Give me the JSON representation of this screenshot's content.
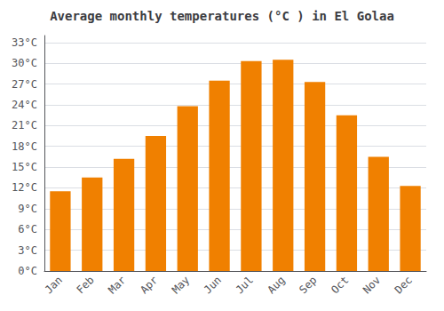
{
  "chart_data": {
    "type": "bar",
    "title": "Average monthly temperatures (°C ) in El Golaa",
    "categories": [
      "Jan",
      "Feb",
      "Mar",
      "Apr",
      "May",
      "Jun",
      "Jul",
      "Aug",
      "Sep",
      "Oct",
      "Nov",
      "Dec"
    ],
    "values": [
      11.5,
      13.5,
      16.2,
      19.5,
      23.8,
      27.5,
      30.3,
      30.5,
      27.3,
      22.5,
      16.5,
      12.3
    ],
    "color": "#F08000",
    "ylim": [
      0,
      34
    ],
    "yticks": [
      {
        "value": 0,
        "label": "0°C"
      },
      {
        "value": 3,
        "label": "3°C"
      },
      {
        "value": 6,
        "label": "6°C"
      },
      {
        "value": 9,
        "label": "9°C"
      },
      {
        "value": 12,
        "label": "12°C"
      },
      {
        "value": 15,
        "label": "15°C"
      },
      {
        "value": 18,
        "label": "18°C"
      },
      {
        "value": 21,
        "label": "21°C"
      },
      {
        "value": 24,
        "label": "24°C"
      },
      {
        "value": 27,
        "label": "27°C"
      },
      {
        "value": 30,
        "label": "30°C"
      },
      {
        "value": 33,
        "label": "33°C"
      }
    ],
    "grid": true
  }
}
